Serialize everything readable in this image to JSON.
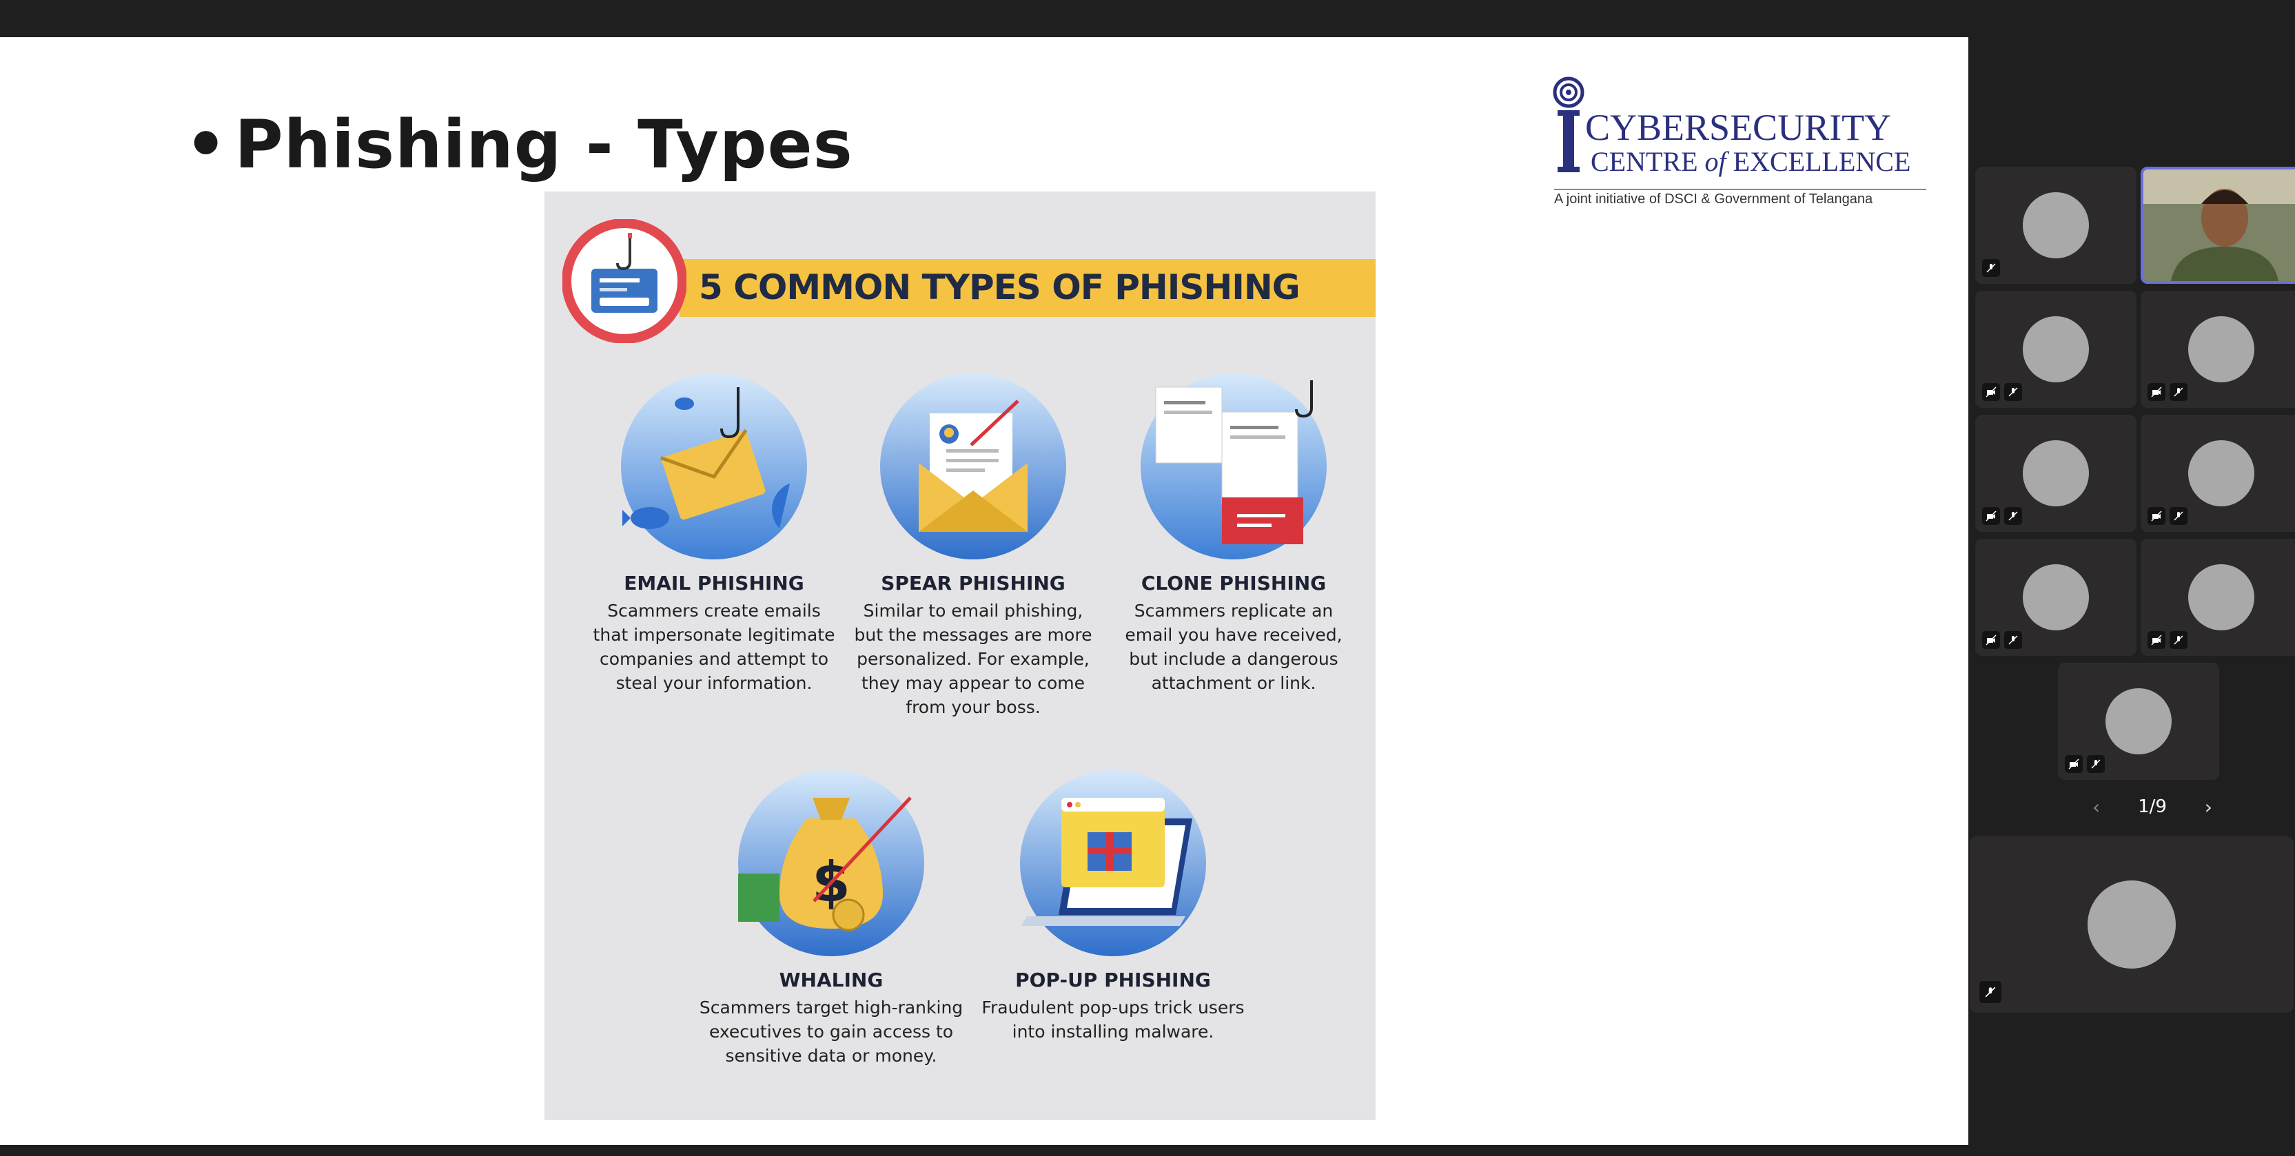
{
  "slide": {
    "title": "Phishing - Types",
    "bullet": "•",
    "logo": {
      "line1": "CYBERSECURITY",
      "line2_a": "CENTRE ",
      "line2_b": "of",
      "line2_c": " EXCELLENCE",
      "tagline": "A joint initiative of DSCI & Government of Telangana"
    },
    "infographic": {
      "banner": "5 COMMON TYPES OF PHISHING",
      "items": [
        {
          "title": "EMAIL PHISHING",
          "desc": "Scammers create emails that impersonate legitimate companies and attempt to steal your information.",
          "icon": "envelope-hook-icon"
        },
        {
          "title": "SPEAR PHISHING",
          "desc": "Similar to email phishing, but the messages are more personalized. For example, they may appear to come from your boss.",
          "icon": "letter-spear-icon"
        },
        {
          "title": "CLONE PHISHING",
          "desc": "Scammers replicate an email you have received, but include a dangerous attachment or link.",
          "icon": "cloned-documents-icon"
        },
        {
          "title": "WHALING",
          "desc": "Scammers target high-ranking executives to gain access to sensitive data or money.",
          "icon": "money-bag-icon"
        },
        {
          "title": "POP-UP PHISHING",
          "desc": "Fraudulent pop-ups trick users into installing malware.",
          "icon": "laptop-popup-icon"
        }
      ]
    }
  },
  "participants": {
    "pager": {
      "label": "1/9"
    },
    "colors": {
      "active_border": "#6a6ee0",
      "tile_bg": "#2c2a2b",
      "avatar": "#a9a9a9"
    }
  }
}
